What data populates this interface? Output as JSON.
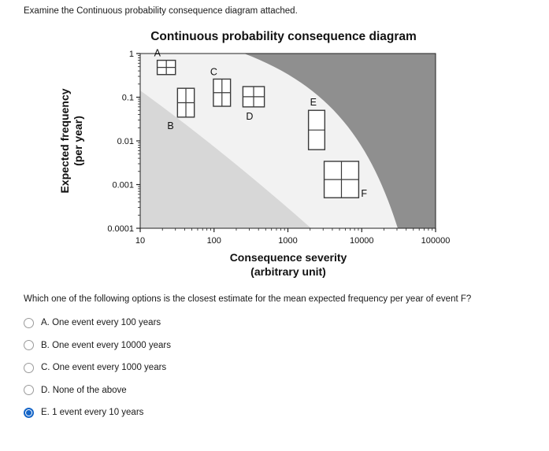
{
  "page": {
    "instruction": "Examine the Continuous probability consequence diagram attached.",
    "question": "Which one of the following options is the closest estimate for the mean expected frequency per year of event F?"
  },
  "options": [
    {
      "letter": "A.",
      "text": "One event every 100 years",
      "selected": false
    },
    {
      "letter": "B.",
      "text": "One event every 10000 years",
      "selected": false
    },
    {
      "letter": "C.",
      "text": "One event every 1000 years",
      "selected": false
    },
    {
      "letter": "D.",
      "text": "None of the above",
      "selected": false
    },
    {
      "letter": "E.",
      "text": "1 event every 10 years",
      "selected": true
    }
  ],
  "colors": {
    "selected_radio": "#1565c7",
    "band_low": "#d7d7d7",
    "band_medium": "#f2f2f2",
    "band_high": "#8f8f8f",
    "axis": "#222222",
    "box_stroke": "#3a3a3a"
  },
  "chart_data": {
    "type": "scatter",
    "title": "Continuous probability consequence diagram",
    "xlabel": "Consequence severity",
    "xlabel2": "(arbitrary unit)",
    "ylabel": "Expected frequency",
    "ylabel2": "(per year)",
    "x_scale": "log",
    "y_scale": "log",
    "xlim": [
      10,
      100000
    ],
    "ylim": [
      0.0001,
      1
    ],
    "x_ticks": [
      10,
      100,
      1000,
      10000,
      100000
    ],
    "x_tick_labels": [
      "10",
      "100",
      "1000",
      "10000",
      "100000"
    ],
    "y_ticks": [
      1,
      0.1,
      0.01,
      0.001,
      0.0001
    ],
    "y_tick_labels": [
      "1",
      "0.1",
      "0.01",
      "0.001",
      "0.0001"
    ],
    "regions": [
      {
        "name": "low-risk",
        "position": "lower-left",
        "shade": "light gray"
      },
      {
        "name": "medium-risk",
        "position": "diagonal middle band",
        "shade": "white"
      },
      {
        "name": "high-risk",
        "position": "upper-right",
        "shade": "dark gray"
      }
    ],
    "events": [
      {
        "label": "A",
        "x_range": [
          17,
          30
        ],
        "y_range": [
          0.33,
          0.7
        ],
        "rows": 2,
        "cols": 2,
        "label_pos": "top-left"
      },
      {
        "label": "B",
        "x_range": [
          32,
          54
        ],
        "y_range": [
          0.035,
          0.16
        ],
        "rows": 2,
        "cols": 2,
        "label_pos": "bottom-left"
      },
      {
        "label": "C",
        "x_range": [
          98,
          167
        ],
        "y_range": [
          0.062,
          0.26
        ],
        "rows": 2,
        "cols": 2,
        "label_pos": "top-left"
      },
      {
        "label": "D",
        "x_range": [
          246,
          480
        ],
        "y_range": [
          0.06,
          0.175
        ],
        "rows": 2,
        "cols": 2,
        "label_pos": "below"
      },
      {
        "label": "E",
        "x_range": [
          1900,
          3160
        ],
        "y_range": [
          0.0063,
          0.05
        ],
        "rows": 2,
        "cols": 1,
        "label_pos": "above"
      },
      {
        "label": "F",
        "x_range": [
          3100,
          9100
        ],
        "y_range": [
          0.0005,
          0.0034
        ],
        "rows": 2,
        "cols": 2,
        "label_pos": "bottom-right"
      }
    ]
  }
}
